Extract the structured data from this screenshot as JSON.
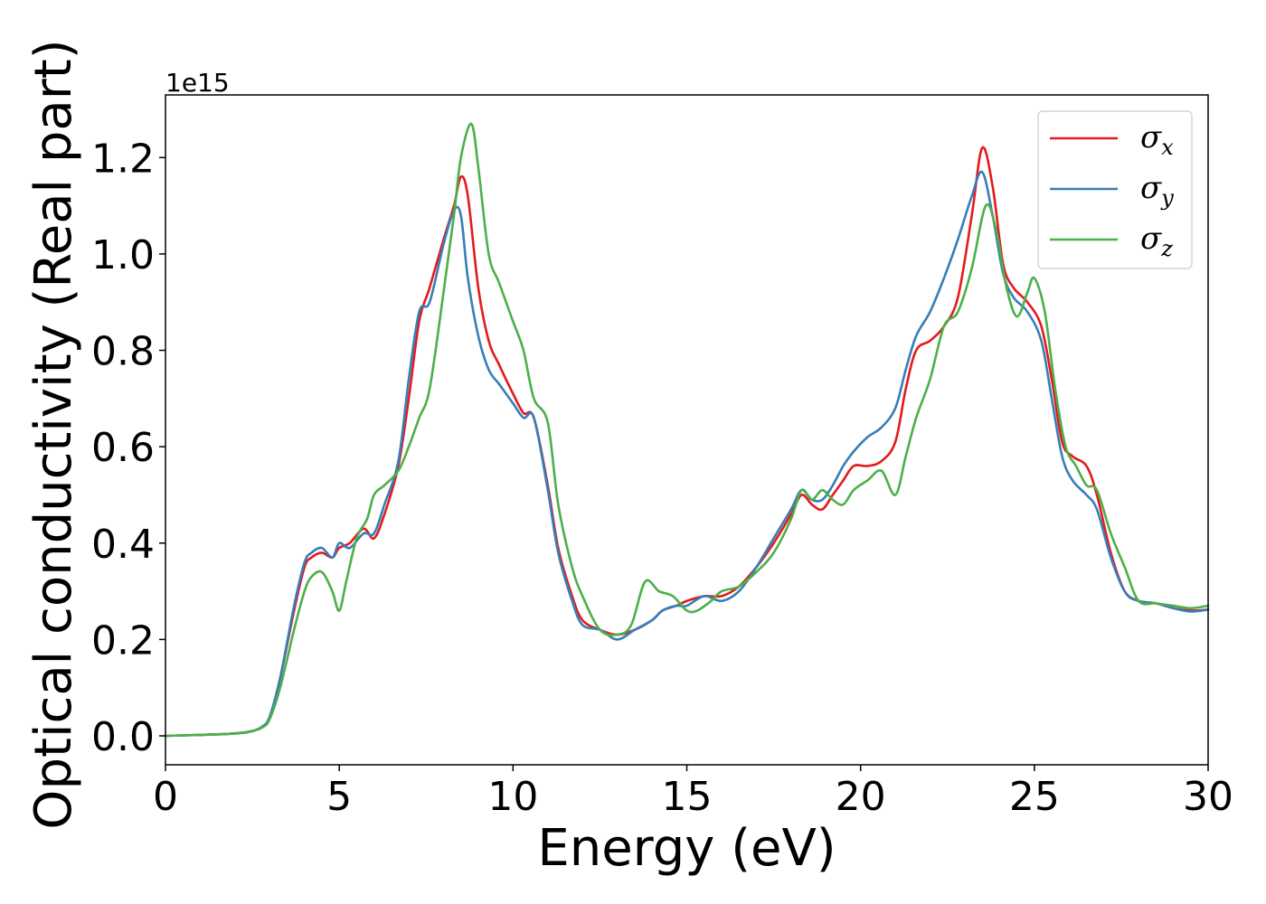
{
  "chart_data": {
    "type": "line",
    "xlabel": "Energy (eV)",
    "ylabel": "Optical conductivity (Real part)",
    "y_offset_text": "1e15",
    "xlim": [
      0,
      30
    ],
    "ylim": [
      -0.06,
      1.33
    ],
    "x_ticks": [
      0,
      5,
      10,
      15,
      20,
      25,
      30
    ],
    "x_tick_labels": [
      "0",
      "5",
      "10",
      "15",
      "20",
      "25",
      "30"
    ],
    "y_ticks": [
      0.0,
      0.2,
      0.4,
      0.6,
      0.8,
      1.0,
      1.2
    ],
    "y_tick_labels": [
      "0.0",
      "0.2",
      "0.4",
      "0.6",
      "0.8",
      "1.0",
      "1.2"
    ],
    "grid": false,
    "legend_position": "top-right",
    "series": [
      {
        "name": "σx",
        "legend_symbol": "σ",
        "legend_subscript": "x",
        "color": "#e41a1c",
        "x": [
          0,
          1,
          2,
          2.5,
          2.8,
          3.0,
          3.3,
          3.7,
          4.0,
          4.2,
          4.5,
          4.8,
          5.0,
          5.3,
          5.7,
          6.0,
          6.3,
          6.7,
          7.0,
          7.3,
          7.6,
          8.0,
          8.3,
          8.5,
          8.7,
          9.0,
          9.3,
          9.6,
          10.0,
          10.3,
          10.6,
          11.0,
          11.3,
          11.7,
          12.0,
          12.5,
          13.0,
          13.5,
          14.0,
          14.3,
          14.7,
          15.0,
          15.5,
          16.0,
          16.5,
          17.0,
          17.5,
          18.0,
          18.3,
          18.6,
          18.9,
          19.2,
          19.5,
          19.8,
          20.2,
          20.6,
          21.0,
          21.3,
          21.6,
          22.0,
          22.4,
          22.8,
          23.2,
          23.5,
          23.8,
          24.1,
          24.4,
          24.8,
          25.2,
          25.5,
          25.8,
          26.1,
          26.5,
          26.8,
          27.2,
          27.6,
          28.0,
          28.5,
          29.0,
          29.5,
          30.0
        ],
        "y": [
          0.0,
          0.002,
          0.005,
          0.01,
          0.02,
          0.04,
          0.12,
          0.26,
          0.35,
          0.37,
          0.38,
          0.37,
          0.39,
          0.4,
          0.43,
          0.41,
          0.46,
          0.56,
          0.7,
          0.86,
          0.93,
          1.03,
          1.1,
          1.16,
          1.12,
          0.93,
          0.82,
          0.77,
          0.71,
          0.67,
          0.66,
          0.52,
          0.39,
          0.29,
          0.24,
          0.22,
          0.21,
          0.22,
          0.24,
          0.26,
          0.27,
          0.28,
          0.29,
          0.29,
          0.31,
          0.35,
          0.4,
          0.46,
          0.5,
          0.48,
          0.47,
          0.5,
          0.53,
          0.56,
          0.56,
          0.57,
          0.61,
          0.72,
          0.8,
          0.82,
          0.85,
          0.91,
          1.08,
          1.22,
          1.14,
          0.98,
          0.93,
          0.9,
          0.85,
          0.74,
          0.61,
          0.58,
          0.56,
          0.5,
          0.38,
          0.3,
          0.28,
          0.275,
          0.265,
          0.26,
          0.262
        ]
      },
      {
        "name": "σy",
        "legend_symbol": "σ",
        "legend_subscript": "y",
        "color": "#377eb8",
        "x": [
          0,
          1,
          2,
          2.5,
          2.8,
          3.0,
          3.3,
          3.7,
          4.0,
          4.2,
          4.5,
          4.8,
          5.0,
          5.3,
          5.7,
          6.0,
          6.3,
          6.7,
          7.0,
          7.3,
          7.6,
          8.0,
          8.3,
          8.5,
          8.7,
          9.0,
          9.3,
          9.6,
          10.0,
          10.3,
          10.6,
          11.0,
          11.3,
          11.7,
          12.0,
          12.5,
          13.0,
          13.5,
          14.0,
          14.3,
          14.7,
          15.0,
          15.5,
          16.0,
          16.5,
          17.0,
          17.5,
          18.0,
          18.3,
          18.6,
          18.9,
          19.2,
          19.5,
          19.8,
          20.2,
          20.6,
          21.0,
          21.3,
          21.6,
          22.0,
          22.4,
          22.8,
          23.2,
          23.5,
          23.8,
          24.1,
          24.4,
          24.8,
          25.2,
          25.5,
          25.8,
          26.1,
          26.5,
          26.8,
          27.2,
          27.6,
          28.0,
          28.5,
          29.0,
          29.5,
          30.0
        ],
        "y": [
          0.0,
          0.002,
          0.005,
          0.01,
          0.02,
          0.04,
          0.12,
          0.27,
          0.36,
          0.38,
          0.39,
          0.37,
          0.4,
          0.39,
          0.42,
          0.42,
          0.48,
          0.57,
          0.74,
          0.88,
          0.9,
          1.02,
          1.09,
          1.08,
          0.95,
          0.83,
          0.76,
          0.73,
          0.69,
          0.66,
          0.66,
          0.51,
          0.38,
          0.28,
          0.23,
          0.22,
          0.2,
          0.22,
          0.24,
          0.26,
          0.27,
          0.27,
          0.29,
          0.28,
          0.3,
          0.35,
          0.41,
          0.47,
          0.51,
          0.49,
          0.49,
          0.52,
          0.56,
          0.59,
          0.62,
          0.64,
          0.68,
          0.76,
          0.83,
          0.88,
          0.95,
          1.03,
          1.12,
          1.17,
          1.08,
          0.96,
          0.91,
          0.88,
          0.82,
          0.7,
          0.58,
          0.53,
          0.5,
          0.47,
          0.37,
          0.3,
          0.28,
          0.275,
          0.265,
          0.258,
          0.262
        ]
      },
      {
        "name": "σz",
        "legend_symbol": "σ",
        "legend_subscript": "z",
        "color": "#4daf4a",
        "x": [
          0,
          1,
          2,
          2.5,
          2.8,
          3.0,
          3.3,
          3.7,
          4.0,
          4.2,
          4.5,
          4.8,
          5.0,
          5.2,
          5.5,
          5.8,
          6.0,
          6.3,
          6.7,
          7.0,
          7.3,
          7.6,
          8.0,
          8.3,
          8.5,
          8.8,
          9.0,
          9.3,
          9.6,
          10.0,
          10.3,
          10.6,
          11.0,
          11.3,
          11.7,
          12.0,
          12.5,
          13.0,
          13.4,
          13.8,
          14.2,
          14.6,
          15.0,
          15.3,
          15.7,
          16.0,
          16.5,
          17.0,
          17.5,
          18.0,
          18.3,
          18.6,
          18.9,
          19.2,
          19.5,
          19.8,
          20.2,
          20.6,
          21.0,
          21.3,
          21.6,
          22.0,
          22.4,
          22.8,
          23.2,
          23.6,
          23.9,
          24.2,
          24.5,
          24.8,
          25.0,
          25.3,
          25.6,
          25.9,
          26.2,
          26.5,
          26.8,
          27.2,
          27.6,
          28.0,
          28.5,
          29.0,
          29.5,
          30.0
        ],
        "y": [
          0.0,
          0.002,
          0.005,
          0.01,
          0.018,
          0.035,
          0.1,
          0.22,
          0.3,
          0.33,
          0.34,
          0.3,
          0.26,
          0.32,
          0.41,
          0.45,
          0.5,
          0.52,
          0.55,
          0.6,
          0.66,
          0.72,
          0.92,
          1.08,
          1.2,
          1.27,
          1.18,
          1.0,
          0.94,
          0.86,
          0.8,
          0.7,
          0.65,
          0.48,
          0.35,
          0.29,
          0.22,
          0.21,
          0.23,
          0.32,
          0.3,
          0.29,
          0.26,
          0.26,
          0.28,
          0.3,
          0.31,
          0.34,
          0.38,
          0.45,
          0.51,
          0.49,
          0.51,
          0.49,
          0.48,
          0.51,
          0.53,
          0.55,
          0.5,
          0.58,
          0.66,
          0.74,
          0.85,
          0.88,
          0.97,
          1.1,
          1.05,
          0.93,
          0.87,
          0.92,
          0.95,
          0.88,
          0.72,
          0.6,
          0.56,
          0.52,
          0.51,
          0.42,
          0.35,
          0.28,
          0.275,
          0.27,
          0.265,
          0.27
        ]
      }
    ]
  }
}
